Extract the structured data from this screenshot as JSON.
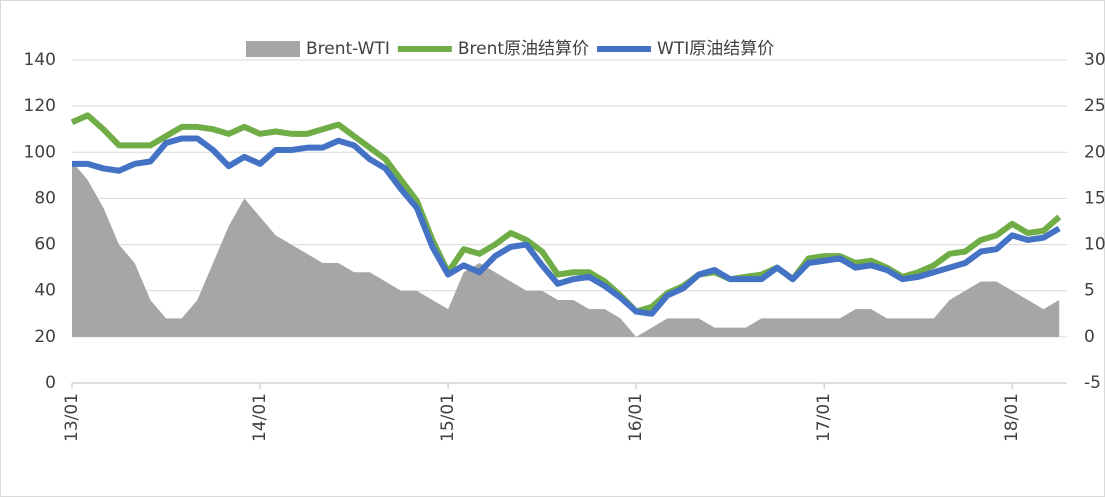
{
  "chart_data": {
    "type": "line",
    "categories": [
      "13/01",
      null,
      null,
      null,
      null,
      null,
      null,
      null,
      null,
      null,
      null,
      null,
      "14/01",
      null,
      null,
      null,
      null,
      null,
      null,
      null,
      null,
      null,
      null,
      null,
      "15/01",
      null,
      null,
      null,
      null,
      null,
      null,
      null,
      null,
      null,
      null,
      null,
      "16/01",
      null,
      null,
      null,
      null,
      null,
      null,
      null,
      null,
      null,
      null,
      null,
      "17/01",
      null,
      null,
      null,
      null,
      null,
      null,
      null,
      null,
      null,
      null,
      null,
      "18/01",
      null,
      null,
      null
    ],
    "series": [
      {
        "name": "Brent-WTI",
        "color": "#a6a6a6",
        "axis": "y2",
        "kind": "area",
        "values": [
          19,
          17,
          14,
          10,
          8,
          4,
          2,
          2,
          4,
          8,
          12,
          15,
          13,
          11,
          10,
          9,
          8,
          8,
          7,
          7,
          6,
          5,
          5,
          4,
          3,
          7,
          8,
          7,
          6,
          5,
          5,
          4,
          4,
          3,
          3,
          2,
          0,
          1,
          2,
          2,
          2,
          1,
          1,
          1,
          2,
          2,
          2,
          2,
          2,
          2,
          3,
          3,
          2,
          2,
          2,
          2,
          4,
          5,
          6,
          6,
          5,
          4,
          3,
          4
        ]
      },
      {
        "name": "Brent原油结算价",
        "color": "#70ad47",
        "values": [
          113,
          116,
          110,
          103,
          103,
          103,
          107,
          111,
          111,
          110,
          108,
          111,
          108,
          109,
          108,
          108,
          110,
          112,
          107,
          102,
          97,
          88,
          79,
          62,
          48,
          58,
          56,
          60,
          65,
          62,
          57,
          47,
          48,
          48,
          44,
          38,
          31,
          33,
          39,
          42,
          47,
          48,
          45,
          46,
          47,
          50,
          45,
          54,
          55,
          55,
          52,
          53,
          50,
          46,
          48,
          51,
          56,
          57,
          62,
          64,
          69,
          65,
          66,
          72
        ]
      },
      {
        "name": "WTI原油结算价",
        "color": "#4472c4",
        "values": [
          95,
          95,
          93,
          92,
          95,
          96,
          104,
          106,
          106,
          101,
          94,
          98,
          95,
          101,
          101,
          102,
          102,
          105,
          103,
          97,
          93,
          84,
          76,
          59,
          47,
          51,
          48,
          55,
          59,
          60,
          51,
          43,
          45,
          46,
          42,
          37,
          31,
          30,
          38,
          41,
          47,
          49,
          45,
          45,
          45,
          50,
          45,
          52,
          53,
          54,
          50,
          51,
          49,
          45,
          46,
          48,
          50,
          52,
          57,
          58,
          64,
          62,
          63,
          67
        ]
      }
    ],
    "ylim": [
      0,
      140
    ],
    "yticks": [
      0,
      20,
      40,
      60,
      80,
      100,
      120,
      140
    ],
    "y2lim": [
      -5,
      30
    ],
    "y2ticks": [
      -5,
      0,
      5,
      10,
      15,
      20,
      25,
      30
    ],
    "grid": true,
    "legend": "top"
  }
}
